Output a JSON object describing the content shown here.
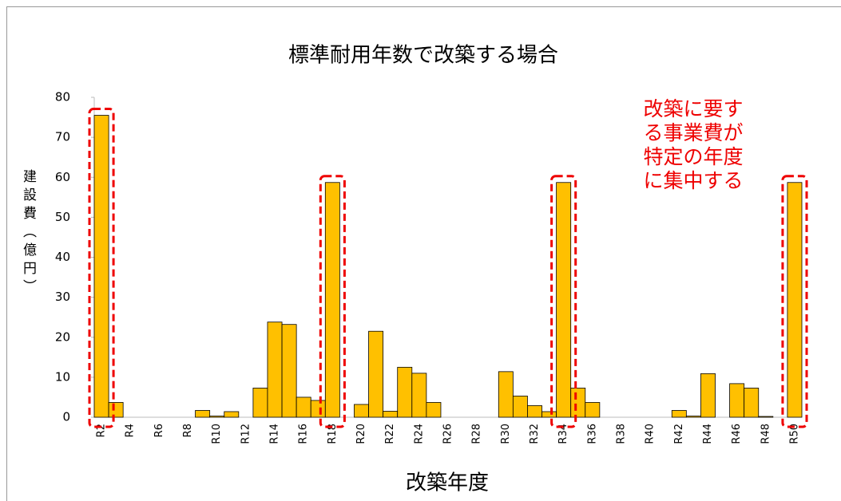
{
  "chart_data": {
    "type": "bar",
    "title": "標準耐用年数で改築する場合",
    "x_label": "改築年度",
    "y_label": "建設費（億円）",
    "annotation": [
      "改築に要す",
      "る事業費が",
      "特定の年度",
      "に集中する"
    ],
    "categories": [
      "R2",
      null,
      "R4",
      null,
      "R6",
      null,
      "R8",
      null,
      "R10",
      null,
      "R12",
      null,
      "R14",
      null,
      "R16",
      null,
      "R18",
      null,
      "R20",
      null,
      "R22",
      null,
      "R24",
      null,
      "R26",
      null,
      "R28",
      null,
      "R30",
      null,
      "R32",
      null,
      "R34",
      null,
      "R36",
      null,
      "R38",
      null,
      "R40",
      null,
      "R42",
      null,
      "R44",
      null,
      "R46",
      null,
      "R48",
      null,
      "R50"
    ],
    "values": [
      75.5,
      3.7,
      0,
      0,
      0,
      0,
      0,
      1.7,
      0.3,
      1.4,
      0,
      7.3,
      23.8,
      23.2,
      5.0,
      4.2,
      58.7,
      0,
      3.2,
      21.5,
      1.5,
      12.5,
      11.0,
      3.7,
      0,
      0,
      0,
      0,
      11.4,
      5.3,
      2.9,
      1.4,
      58.7,
      7.3,
      3.7,
      0,
      0,
      0,
      0,
      0,
      1.7,
      0.3,
      10.9,
      0,
      8.4,
      7.3,
      0.2,
      0,
      58.7
    ],
    "color": "#ffc000",
    "ylim": [
      0,
      80
    ],
    "yticks": [
      0,
      10,
      20,
      30,
      40,
      50,
      60,
      70,
      80
    ]
  }
}
